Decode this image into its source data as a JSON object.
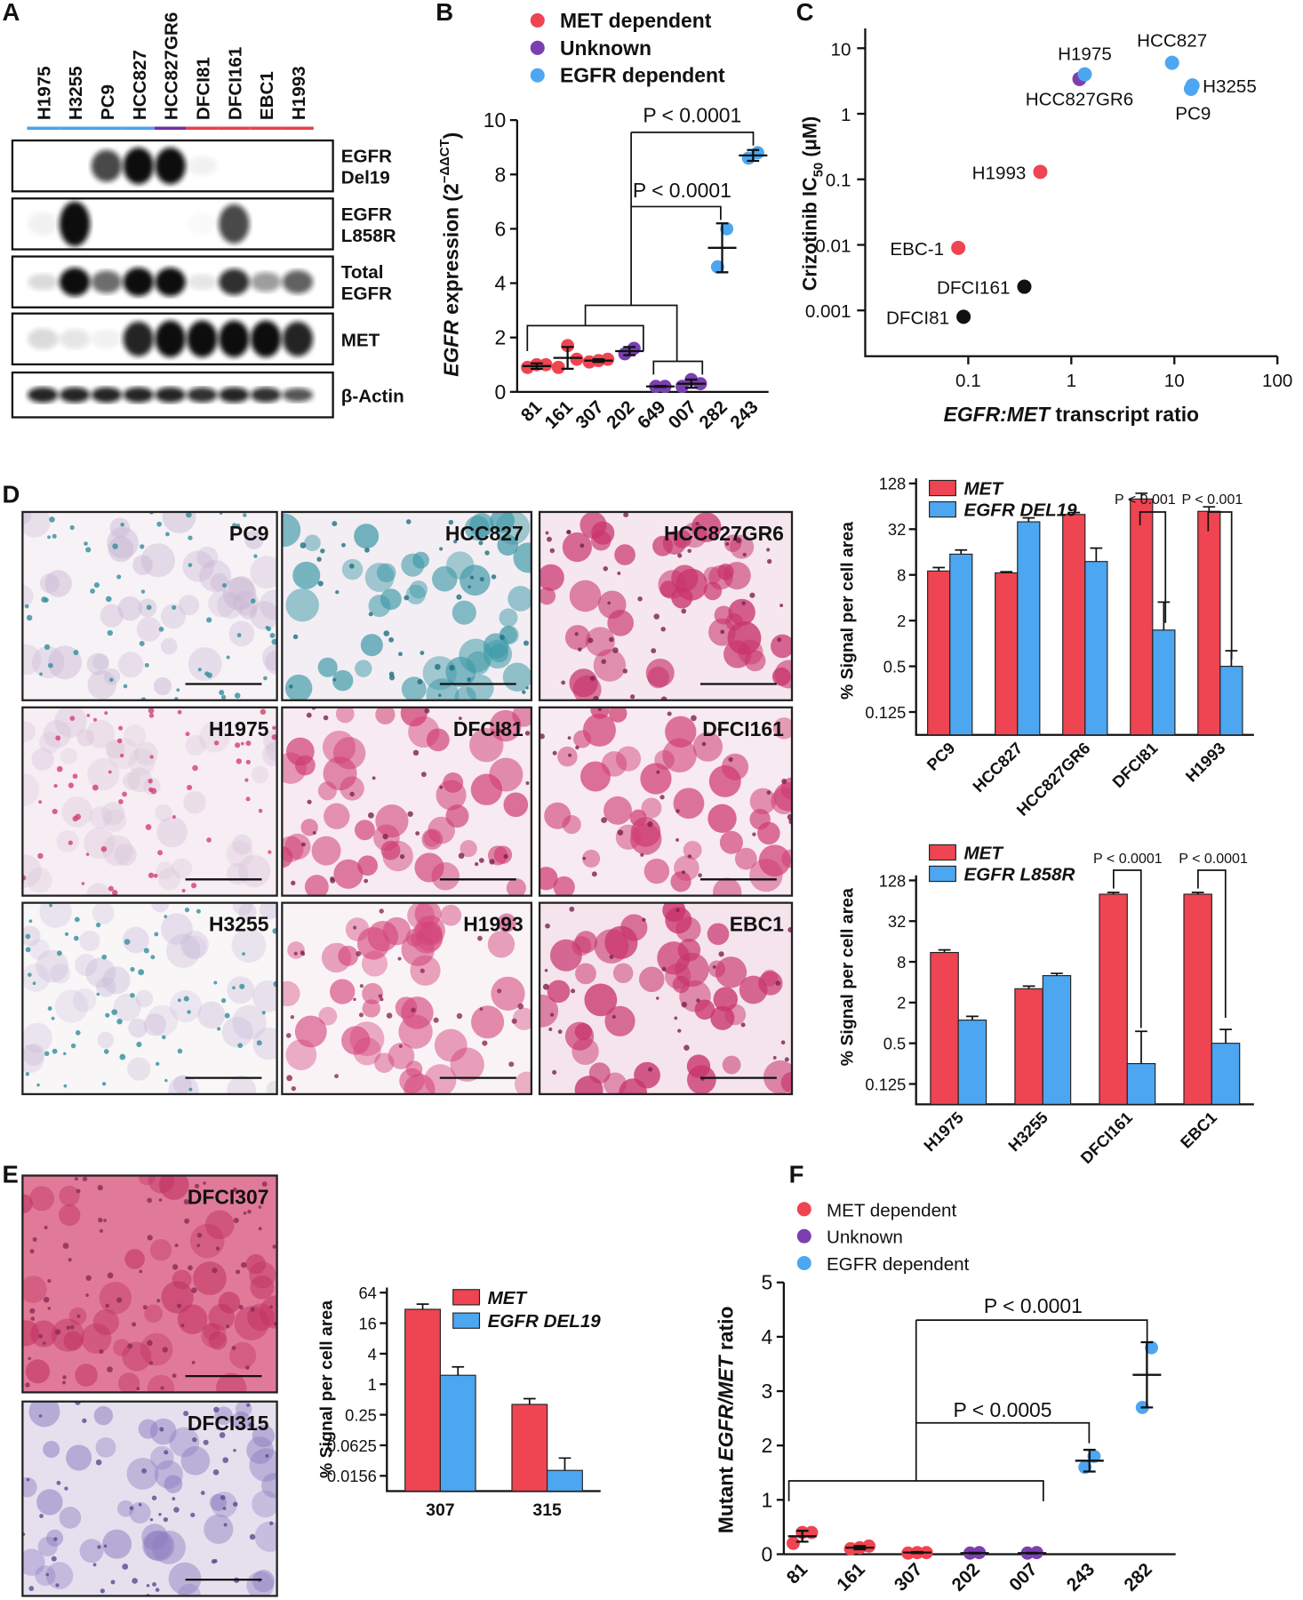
{
  "panel_labels": [
    "A",
    "B",
    "C",
    "D",
    "E",
    "F"
  ],
  "blot": {
    "lanes": [
      "H1975",
      "H3255",
      "PC9",
      "HCC827",
      "HCC827GR6",
      "DFCI81",
      "DFCI161",
      "EBC1",
      "H1993"
    ],
    "lane_colors": [
      "#4ba3e8",
      "#4ba3e8",
      "#4ba3e8",
      "#4ba3e8",
      "#7030a0",
      "#e8424a",
      "#e8424a",
      "#e8424a",
      "#e8424a"
    ],
    "rows": [
      [
        "EGFR",
        "Del19"
      ],
      [
        "EGFR",
        "L858R"
      ],
      [
        "Total",
        "EGFR"
      ],
      [
        "MET"
      ],
      [
        "β-Actin"
      ]
    ]
  },
  "micrographs": {
    "labels": [
      "PC9",
      "HCC827",
      "HCC827GR6",
      "H1975",
      "DFCI81",
      "DFCI161",
      "H3255",
      "H1993",
      "EBC1"
    ]
  },
  "tissue": {
    "labels": [
      "DFCI307",
      "DFCI315"
    ]
  },
  "chart_data": [
    {
      "type": "dot",
      "categories": [
        "81",
        "161",
        "307",
        "202",
        "649",
        "007",
        "282",
        "243"
      ],
      "series": [
        {
          "name": "MET dependent",
          "color": "#ef4451",
          "values": [
            [
              0.9,
              1.0,
              1.0
            ],
            [
              0.9,
              1.7,
              1.2
            ],
            [
              1.1,
              1.15,
              1.2
            ],
            null,
            null,
            null,
            null,
            null
          ]
        },
        {
          "name": "Unknown",
          "color": "#7b3fb0",
          "values": [
            null,
            null,
            null,
            [
              1.4,
              1.6
            ],
            [
              0.2,
              0.2
            ],
            [
              0.2,
              0.45,
              0.3
            ],
            null,
            null
          ]
        },
        {
          "name": "EGFR dependent",
          "color": "#4da6f0",
          "values": [
            null,
            null,
            null,
            null,
            null,
            null,
            [
              4.6,
              6.0
            ],
            [
              8.6,
              8.8
            ]
          ]
        }
      ],
      "means": [
        0.95,
        1.25,
        1.15,
        1.5,
        0.2,
        0.3,
        5.3,
        8.7
      ],
      "errors": [
        0.1,
        0.4,
        0.05,
        0.15,
        0.02,
        0.15,
        0.9,
        0.2
      ],
      "ylabel_parts": [
        "EGFR",
        " expression (2",
        "−ΔΔCT",
        ")"
      ],
      "ylim": [
        0,
        10
      ],
      "yticks": [
        0,
        2,
        4,
        6,
        8,
        10
      ],
      "annotations": [
        "P < 0.0001",
        "P < 0.0001"
      ]
    },
    {
      "type": "scatter",
      "x": [
        1.2,
        1.35,
        9.5,
        15,
        14.5,
        0.5,
        0.08,
        0.35,
        0.09
      ],
      "y": [
        3.4,
        4.0,
        6,
        2.7,
        2.4,
        0.13,
        0.009,
        0.0023,
        0.0008
      ],
      "point_labels": [
        "HCC827GR6",
        "H1975",
        "HCC827",
        "H3255",
        "PC9",
        "H1993",
        "EBC-1",
        "DFCI161",
        "DFCI81"
      ],
      "colors": [
        "#7b3fb0",
        "#4da6f0",
        "#4da6f0",
        "#4da6f0",
        "#4da6f0",
        "#ef4451",
        "#ef4451",
        "#111111",
        "#111111"
      ],
      "xlim": [
        0.01,
        100
      ],
      "ylim": [
        0.0002,
        20
      ],
      "xticks": [
        0.1,
        1,
        10,
        100
      ],
      "yticks": [
        0.001,
        0.01,
        0.1,
        1,
        10
      ],
      "log_x": true,
      "log_y": true,
      "xlabel_parts": [
        "EGFR:MET",
        " transcript ratio"
      ],
      "ylabel_parts": [
        "Crizotinib IC",
        "50",
        " (μM)"
      ]
    },
    {
      "type": "grouped_bar",
      "log_base": 2,
      "categories": [
        "PC9",
        "HCC827",
        "HCC827GR6",
        "DFCI81",
        "H1993"
      ],
      "series": [
        {
          "name": "MET",
          "color": "#ef4451",
          "values": [
            9,
            8.5,
            50,
            80,
            55
          ],
          "errors": [
            1,
            0.3,
            3,
            15,
            8
          ]
        },
        {
          "name": "EGFR DEL19",
          "color": "#4da6f0",
          "values": [
            15,
            40,
            12,
            1.5,
            0.5
          ],
          "errors": [
            2,
            5,
            6,
            2,
            0.3
          ]
        }
      ],
      "ylim": [
        0.0625,
        128
      ],
      "yticks": [
        0.125,
        0.5,
        2,
        8,
        32,
        128
      ],
      "ylabel": "% Signal per cell area",
      "annotations": [
        "P < 0.001",
        "P < 0.001"
      ]
    },
    {
      "type": "grouped_bar",
      "log_base": 2,
      "categories": [
        "H1975",
        "H3255",
        "DFCI161",
        "EBC1"
      ],
      "series": [
        {
          "name": "MET",
          "color": "#ef4451",
          "values": [
            11,
            3.2,
            80,
            80
          ],
          "errors": [
            1,
            0.3,
            5,
            5
          ]
        },
        {
          "name": "EGFR L858R",
          "color": "#4da6f0",
          "values": [
            1.1,
            5,
            0.25,
            0.5
          ],
          "errors": [
            0.15,
            0.4,
            0.5,
            0.3
          ]
        }
      ],
      "ylim": [
        0.0625,
        128
      ],
      "yticks": [
        0.125,
        0.5,
        2,
        8,
        32,
        128
      ],
      "ylabel": "% Signal per cell area",
      "annotations": [
        "P < 0.0001",
        "P < 0.0001"
      ]
    },
    {
      "type": "grouped_bar",
      "log_base": 2,
      "categories": [
        "307",
        "315"
      ],
      "series": [
        {
          "name": "MET",
          "color": "#ef4451",
          "values": [
            30,
            0.4
          ],
          "errors": [
            8,
            0.12
          ]
        },
        {
          "name": "EGFR DEL19",
          "color": "#4da6f0",
          "values": [
            1.5,
            0.02
          ],
          "errors": [
            0.7,
            0.015
          ]
        }
      ],
      "ylim": [
        0.0078125,
        64
      ],
      "yticks": [
        {
          "value": 0.015625,
          "label": "0.0156"
        },
        0.0625,
        0.25,
        1,
        4,
        16,
        64
      ],
      "ylabel": "% Signal per cell area"
    },
    {
      "type": "dot",
      "categories": [
        "81",
        "161",
        "307",
        "202",
        "007",
        "243",
        "282"
      ],
      "series": [
        {
          "name": "MET dependent",
          "color": "#ef4451",
          "values": [
            [
              0.2,
              0.4,
              0.4
            ],
            [
              0.1,
              0.12,
              0.15
            ],
            [
              0.02,
              0.03,
              0.03
            ],
            null,
            null,
            null,
            null
          ]
        },
        {
          "name": "Unknown",
          "color": "#7b3fb0",
          "values": [
            null,
            null,
            null,
            [
              0.02,
              0.03
            ],
            [
              0.02,
              0.03
            ],
            null,
            null
          ]
        },
        {
          "name": "EGFR dependent",
          "color": "#4da6f0",
          "values": [
            null,
            null,
            null,
            null,
            null,
            [
              1.6,
              1.8
            ],
            [
              2.7,
              3.8
            ]
          ]
        }
      ],
      "means": [
        0.33,
        0.12,
        0.03,
        0.02,
        0.02,
        1.72,
        3.3
      ],
      "errors": [
        0.1,
        0.03,
        0.01,
        0.005,
        0.005,
        0.2,
        0.6
      ],
      "ylabel_parts": [
        "Mutant ",
        "EGFR/MET",
        " ratio"
      ],
      "ylim": [
        0,
        5
      ],
      "yticks": [
        0,
        1,
        2,
        3,
        4,
        5
      ],
      "annotations": [
        "P < 0.0001",
        "P < 0.0005"
      ]
    }
  ]
}
